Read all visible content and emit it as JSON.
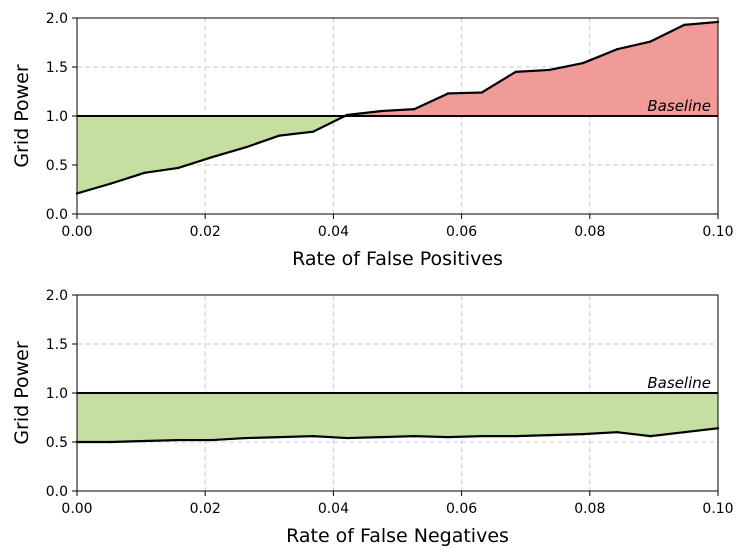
{
  "chart_data": [
    {
      "type": "line",
      "id": "fp",
      "xlabel": "Rate of False Positives",
      "ylabel": "Grid Power",
      "xlim": [
        0.0,
        0.1
      ],
      "ylim": [
        0.0,
        2.0
      ],
      "grid": true,
      "xticks": [
        0.0,
        0.02,
        0.04,
        0.06,
        0.08,
        0.1
      ],
      "xtick_labels": [
        "0.00",
        "0.02",
        "0.04",
        "0.06",
        "0.08",
        "0.10"
      ],
      "yticks": [
        0.0,
        0.5,
        1.0,
        1.5,
        2.0
      ],
      "ytick_labels": [
        "0.0",
        "0.5",
        "1.0",
        "1.5",
        "2.0"
      ],
      "baseline": {
        "value": 1.0,
        "label": "Baseline"
      },
      "fill_below_color": "#c5dfa2",
      "fill_above_color": "#f09b98",
      "series": [
        {
          "name": "Grid Power",
          "x": [
            0.0,
            0.00526,
            0.01053,
            0.01579,
            0.02105,
            0.02632,
            0.03158,
            0.03684,
            0.04211,
            0.04737,
            0.05263,
            0.05789,
            0.06316,
            0.06842,
            0.07368,
            0.07895,
            0.08421,
            0.08947,
            0.09474,
            0.1
          ],
          "y": [
            0.21,
            0.31,
            0.42,
            0.47,
            0.58,
            0.68,
            0.8,
            0.84,
            1.01,
            1.05,
            1.07,
            1.23,
            1.24,
            1.45,
            1.47,
            1.54,
            1.68,
            1.76,
            1.93,
            1.96
          ]
        }
      ]
    },
    {
      "type": "line",
      "id": "fn",
      "xlabel": "Rate of False Negatives",
      "ylabel": "Grid Power",
      "xlim": [
        0.0,
        0.1
      ],
      "ylim": [
        0.0,
        2.0
      ],
      "grid": true,
      "xticks": [
        0.0,
        0.02,
        0.04,
        0.06,
        0.08,
        0.1
      ],
      "xtick_labels": [
        "0.00",
        "0.02",
        "0.04",
        "0.06",
        "0.08",
        "0.10"
      ],
      "yticks": [
        0.0,
        0.5,
        1.0,
        1.5,
        2.0
      ],
      "ytick_labels": [
        "0.0",
        "0.5",
        "1.0",
        "1.5",
        "2.0"
      ],
      "baseline": {
        "value": 1.0,
        "label": "Baseline"
      },
      "fill_below_color": "#c5dfa2",
      "fill_above_color": "#f09b98",
      "series": [
        {
          "name": "Grid Power",
          "x": [
            0.0,
            0.00526,
            0.01053,
            0.01579,
            0.02105,
            0.02632,
            0.03158,
            0.03684,
            0.04211,
            0.04737,
            0.05263,
            0.05789,
            0.06316,
            0.06842,
            0.07368,
            0.07895,
            0.08421,
            0.08947,
            0.09474,
            0.1
          ],
          "y": [
            0.5,
            0.5,
            0.51,
            0.52,
            0.52,
            0.54,
            0.55,
            0.56,
            0.54,
            0.55,
            0.56,
            0.55,
            0.56,
            0.56,
            0.57,
            0.58,
            0.6,
            0.56,
            0.6,
            0.64
          ]
        }
      ]
    }
  ]
}
